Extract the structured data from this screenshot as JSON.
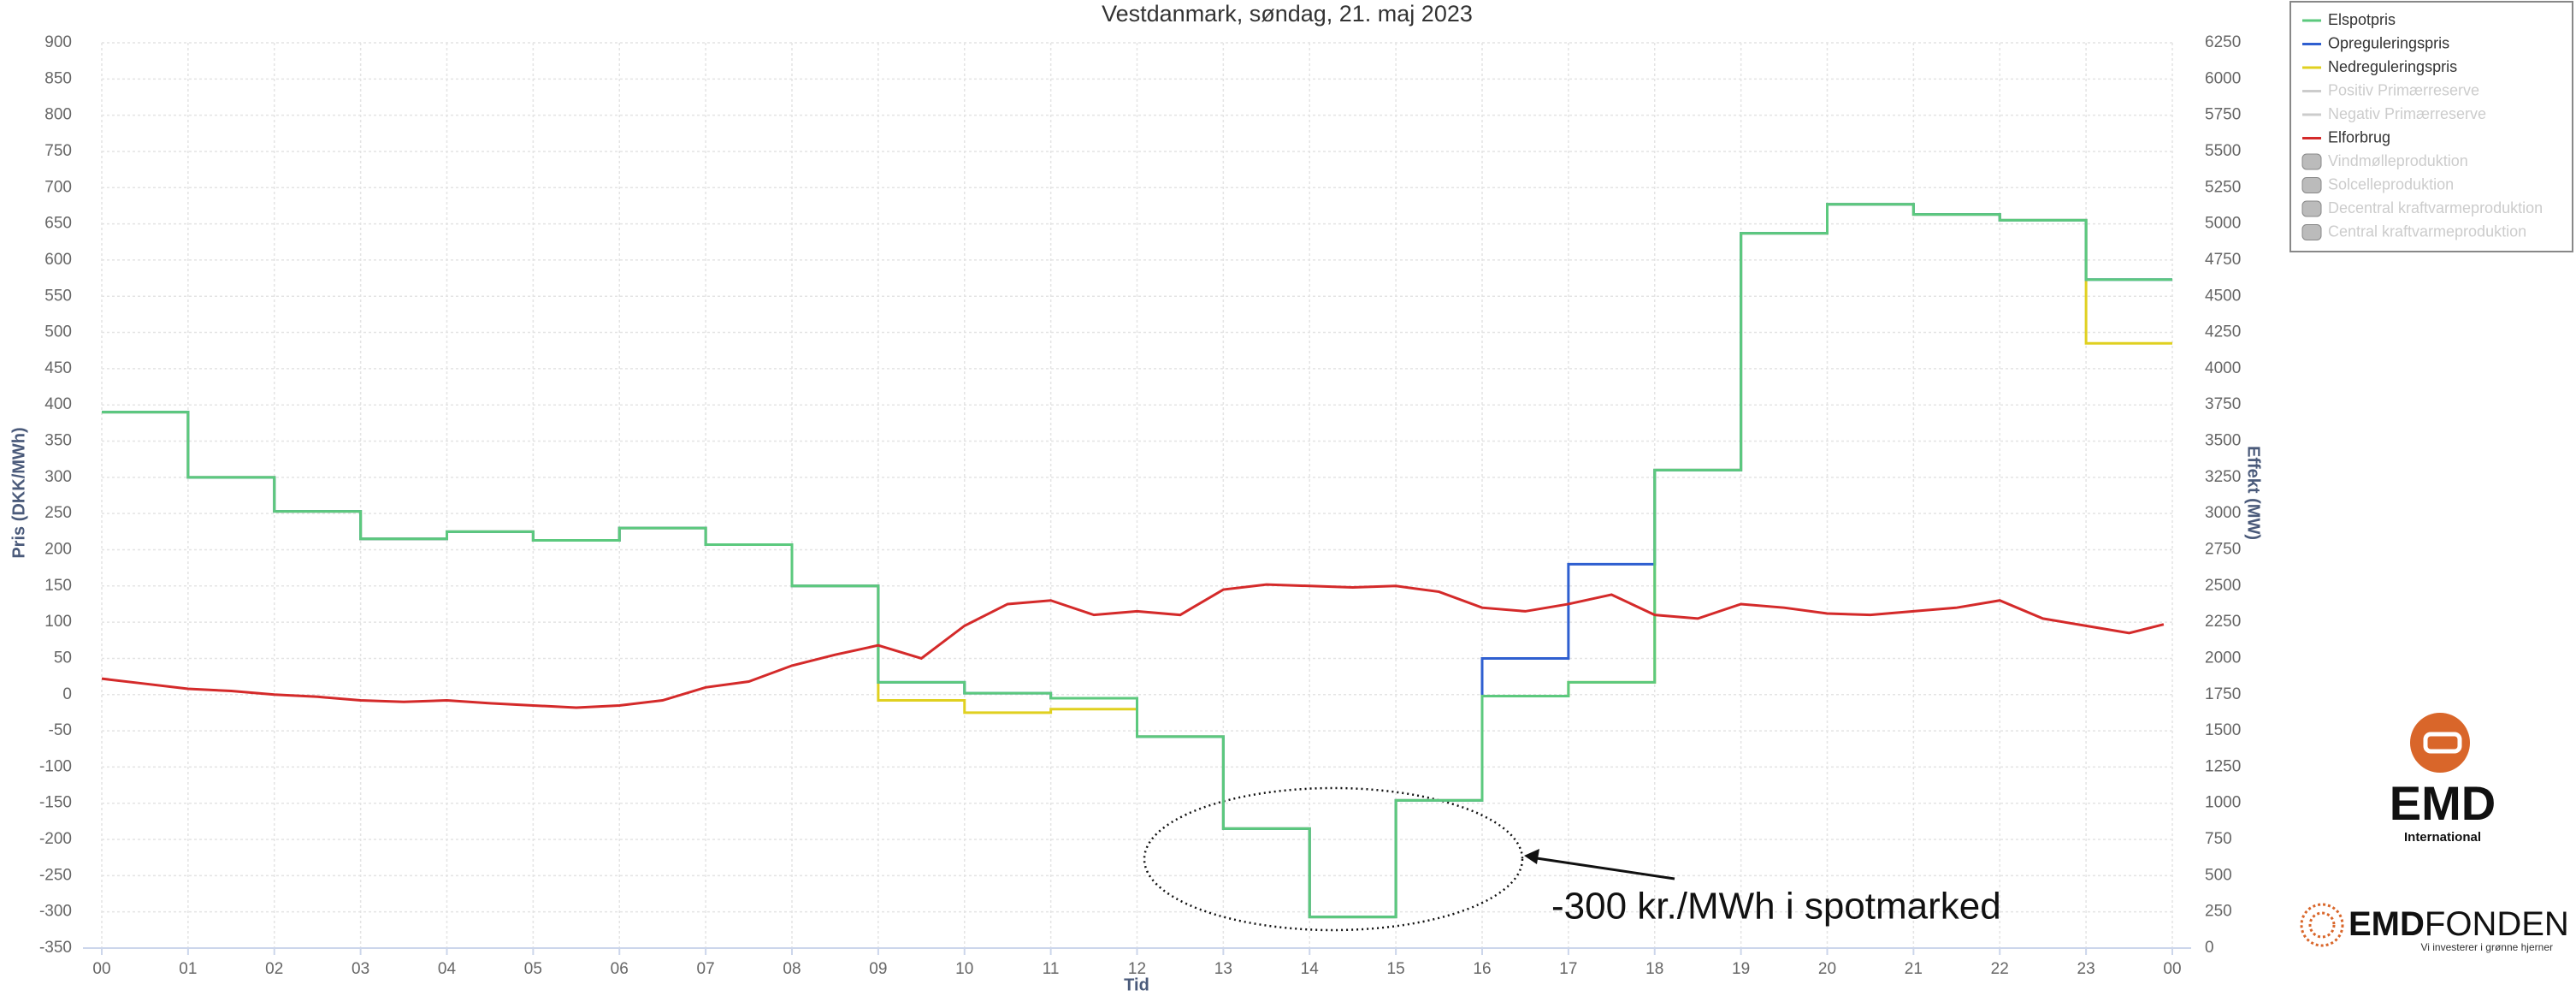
{
  "chart_data": {
    "type": "step",
    "title": "Vestdanmark, søndag, 21. maj 2023",
    "x_label": "Tid",
    "y_label": "Pris (DKK/MWh)",
    "y2_label": "Effekt (MW)",
    "x": [
      0,
      1,
      2,
      3,
      4,
      5,
      6,
      7,
      8,
      9,
      10,
      11,
      12,
      13,
      14,
      15,
      16,
      17,
      18,
      19,
      20,
      21,
      22,
      23
    ],
    "xlim": [
      0,
      24
    ],
    "xticks": [
      {
        "value": 0,
        "label": "00"
      },
      {
        "value": 1,
        "label": "01"
      },
      {
        "value": 2,
        "label": "02"
      },
      {
        "value": 3,
        "label": "03"
      },
      {
        "value": 4,
        "label": "04"
      },
      {
        "value": 5,
        "label": "05"
      },
      {
        "value": 6,
        "label": "06"
      },
      {
        "value": 7,
        "label": "07"
      },
      {
        "value": 8,
        "label": "08"
      },
      {
        "value": 9,
        "label": "09"
      },
      10,
      11,
      12,
      13,
      14,
      15,
      16,
      17,
      18,
      19,
      20,
      21,
      22,
      23,
      {
        "value": 24,
        "label": "00"
      }
    ],
    "ylim": [
      -350,
      900
    ],
    "yticks": [
      -350,
      -300,
      -250,
      -200,
      -150,
      -100,
      -50,
      0,
      50,
      100,
      150,
      200,
      250,
      300,
      350,
      400,
      450,
      500,
      550,
      600,
      650,
      700,
      750,
      800,
      850,
      900
    ],
    "y2lim": [
      0,
      6250
    ],
    "y2ticks": [
      0,
      250,
      500,
      750,
      1000,
      1250,
      1500,
      1750,
      2000,
      2250,
      2500,
      2750,
      3000,
      3250,
      3500,
      3750,
      4000,
      4250,
      4500,
      4750,
      5000,
      5250,
      5500,
      5750,
      6000,
      6250
    ],
    "grid": true,
    "legend": "top-right",
    "series": [
      {
        "name": "Nedreguleringspris",
        "color": "#e0d020",
        "values": [
          390,
          300,
          253,
          215,
          225,
          213,
          230,
          207,
          150,
          -8,
          -25,
          -20,
          -58,
          -185,
          -307,
          -146,
          -2,
          17,
          310,
          637,
          677,
          663,
          655,
          485
        ]
      },
      {
        "name": "Opreguleringspris",
        "color": "#2f5fd0",
        "values": [
          390,
          300,
          253,
          215,
          225,
          213,
          230,
          207,
          150,
          17,
          2,
          -5,
          -58,
          -185,
          -307,
          -146,
          50,
          180,
          310,
          637,
          677,
          663,
          655,
          573
        ]
      },
      {
        "name": "Elspotpris",
        "color": "#5cc97e",
        "values": [
          390,
          300,
          253,
          215,
          225,
          213,
          230,
          207,
          150,
          17,
          2,
          -5,
          -58,
          -185,
          -307,
          -146,
          -2,
          17,
          310,
          637,
          677,
          663,
          655,
          573
        ]
      },
      {
        "name": "Elforbrug",
        "color": "#d42a2a",
        "axis": "y2",
        "type": "line",
        "x": [
          0,
          0.5,
          1,
          1.5,
          2,
          2.5,
          3,
          3.5,
          4,
          4.5,
          5,
          5.5,
          6,
          6.5,
          7,
          7.5,
          8,
          8.5,
          9,
          9.5,
          10,
          10.5,
          11,
          11.5,
          12,
          12.5,
          13,
          13.5,
          14,
          14.5,
          15,
          15.5,
          16,
          16.5,
          17,
          17.5,
          18,
          18.5,
          19,
          19.5,
          20,
          20.5,
          21,
          21.5,
          22,
          22.5,
          23,
          23.5,
          23.9
        ],
        "values": [
          1860,
          1825,
          1790,
          1775,
          1750,
          1735,
          1710,
          1700,
          1710,
          1690,
          1675,
          1660,
          1675,
          1710,
          1800,
          1840,
          1950,
          2025,
          2090,
          2000,
          2225,
          2375,
          2400,
          2300,
          2325,
          2300,
          2475,
          2510,
          2500,
          2490,
          2500,
          2460,
          2350,
          2325,
          2375,
          2440,
          2300,
          2275,
          2375,
          2350,
          2310,
          2300,
          2325,
          2350,
          2400,
          2275,
          2225,
          2175,
          2235
        ]
      }
    ],
    "legend_order": [
      2,
      1,
      0
    ],
    "legend_inactive_lines": [
      "Positiv Primærreserve",
      "Negativ Primærreserve"
    ],
    "legend_inactive_areas": [
      "Vindmølleproduktion",
      "Solcelleproduktion",
      "Decentral kraftvarmeproduktion",
      "Central kraftvarmeproduktion"
    ],
    "annotation": "-300 kr./MWh i spotmarked"
  },
  "logos": {
    "emd": "EMD",
    "emd_sub": "International",
    "fonden_a": "EMD",
    "fonden_b": "FONDEN",
    "fonden_sub": "Vi investerer i grønne hjerner"
  }
}
